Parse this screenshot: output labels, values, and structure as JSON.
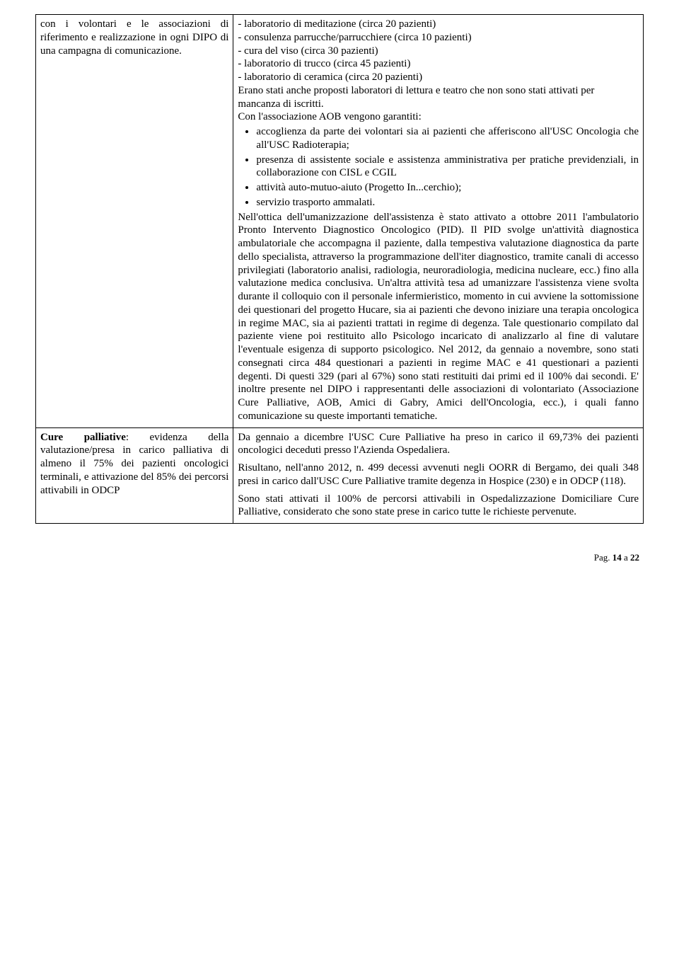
{
  "table": {
    "rows": [
      {
        "left": {
          "paragraphs_html": [
            "con i volontari e le associazioni di riferimento e realizzazione in ogni DIPO di una campagna di comunicazione."
          ]
        },
        "right": {
          "intro_lines": [
            "- laboratorio di meditazione  (circa 20 pazienti)",
            "- consulenza parrucche/parrucchiere  (circa 10 pazienti)",
            "- cura del viso  (circa 30 pazienti)",
            "- laboratorio di trucco  (circa 45 pazienti)",
            "- laboratorio di ceramica  (circa 20 pazienti)",
            "Erano stati anche proposti  laboratori di lettura e teatro che non sono stati attivati per mancanza di iscritti.",
            "Con l'associazione  AOB vengono garantiti:"
          ],
          "bullets": [
            "accoglienza da parte dei volontari  sia ai pazienti che afferiscono all'USC Oncologia che all'USC Radioterapia;",
            "presenza di assistente sociale e assistenza amministrativa per pratiche previdenziali, in collaborazione con  CISL e CGIL",
            "attività auto-mutuo-aiuto (Progetto In...cerchio);",
            "servizio trasporto ammalati."
          ],
          "post_paragraphs": [
            "Nell'ottica dell'umanizzazione dell'assistenza è stato attivato a ottobre 2011 l'ambulatorio Pronto Intervento Diagnostico Oncologico (PID). Il PID svolge un'attività diagnostica ambulatoriale che accompagna il paziente, dalla tempestiva valutazione diagnostica da parte dello specialista, attraverso la programmazione dell'iter diagnostico, tramite canali di accesso privilegiati (laboratorio analisi, radiologia, neuroradiologia, medicina nucleare, ecc.) fino alla valutazione medica conclusiva. Un'altra attività tesa ad umanizzare l'assistenza viene svolta durante il colloquio con il personale infermieristico, momento in cui avviene la sottomissione dei questionari del progetto Hucare, sia ai pazienti che devono iniziare una terapia oncologica in regime MAC, sia ai pazienti trattati in regime di degenza. Tale questionario compilato dal paziente viene poi restituito allo Psicologo incaricato di analizzarlo al fine di valutare l'eventuale esigenza di supporto psicologico. Nel 2012, da gennaio a novembre, sono stati consegnati circa 484 questionari a pazienti in regime MAC e 41 questionari a pazienti degenti. Di questi 329 (pari al 67%) sono stati restituiti dai primi ed il 100% dai secondi. E' inoltre presente nel DIPO i rappresentanti delle associazioni di volontariato (Associazione Cure Palliative, AOB, Amici di Gabry, Amici dell'Oncologia, ecc.), i quali fanno comunicazione su queste importanti tematiche."
          ]
        }
      },
      {
        "left": {
          "paragraphs_html": [
            "<b>Cure palliative</b>: evidenza della valutazione/presa in carico palliativa di almeno il 75% dei pazienti oncologici terminali, e attivazione del 85% dei percorsi attivabili in ODCP"
          ]
        },
        "right": {
          "post_paragraphs": [
            "Da gennaio a dicembre l'USC Cure Palliative ha preso in carico il 69,73% dei pazienti oncologici deceduti presso l'Azienda Ospedaliera.",
            "Risultano, nell'anno 2012, n. 499 decessi avvenuti negli OORR di Bergamo, dei quali 348 presi in carico dall'USC Cure Palliative tramite degenza in Hospice (230) e in ODCP (118).",
            "Sono stati attivati il 100% de percorsi attivabili in Ospedalizzazione Domiciliare Cure Palliative, considerato che sono state prese in carico tutte le richieste pervenute."
          ]
        }
      }
    ]
  },
  "footer": {
    "prefix": "Pag. ",
    "current": "14",
    "sep": " a ",
    "total": "22"
  }
}
